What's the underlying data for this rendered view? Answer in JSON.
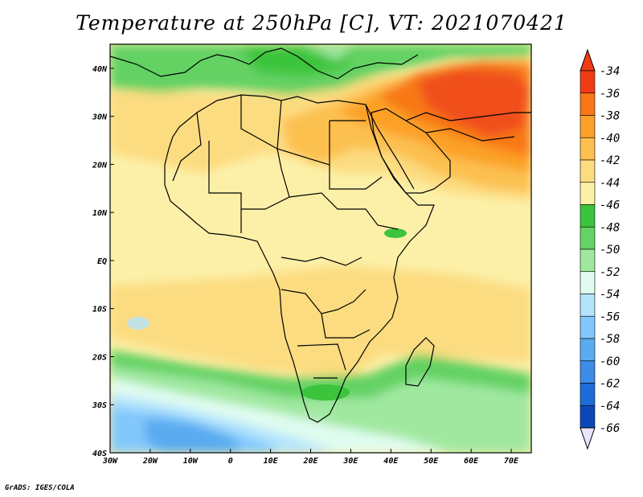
{
  "title": "Temperature at 250hPa [C], VT: 2021070421",
  "footer": "GrADS: IGES/COLA",
  "map": {
    "region": "Africa and Arabian Peninsula",
    "lon_range": [
      -30,
      75
    ],
    "lat_range": [
      -40,
      45
    ],
    "lon_ticks": [
      "30W",
      "20W",
      "10W",
      "0",
      "10E",
      "20E",
      "30E",
      "40E",
      "50E",
      "60E",
      "70E"
    ],
    "lat_ticks": [
      "40N",
      "30N",
      "20N",
      "10N",
      "EQ",
      "10S",
      "20S",
      "30S",
      "40S"
    ]
  },
  "colorbar": {
    "labels": [
      "-34",
      "-36",
      "-38",
      "-40",
      "-42",
      "-44",
      "-46",
      "-48",
      "-50",
      "-52",
      "-54",
      "-56",
      "-58",
      "-60",
      "-62",
      "-64",
      "-66"
    ],
    "colors": [
      "#f03c14",
      "#f87818",
      "#fca028",
      "#fcc050",
      "#fcdc80",
      "#fcf0a8",
      "#3cc43c",
      "#64d264",
      "#a0e8a0",
      "#e0fcf0",
      "#b4e4fc",
      "#82c8fc",
      "#5aacf0",
      "#3c8ce8",
      "#1e6cd8",
      "#0c48b8",
      "#081e80"
    ],
    "top_color": "#f03c14",
    "bottom_color": "#e8e4fc"
  }
}
